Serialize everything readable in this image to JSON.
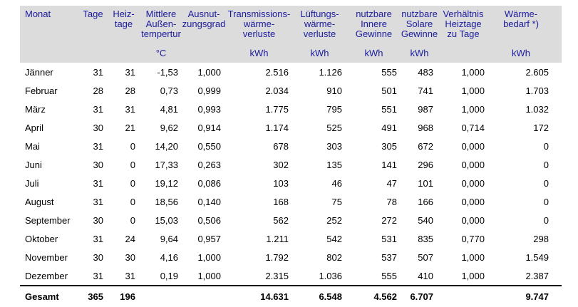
{
  "colors": {
    "header_bg": "#dcdcdc",
    "header_text": "#1c1c9e",
    "body_text": "#000000",
    "rule": "#000000"
  },
  "table": {
    "columns": [
      {
        "id": "monat",
        "title_lines": [
          "Monat"
        ],
        "unit": ""
      },
      {
        "id": "tage",
        "title_lines": [
          "Tage"
        ],
        "unit": ""
      },
      {
        "id": "heiztage",
        "title_lines": [
          "Heiz-",
          "tage"
        ],
        "unit": ""
      },
      {
        "id": "aussentemperatur",
        "title_lines": [
          "Mittlere",
          "Außen-",
          "tempertur"
        ],
        "unit": "°C"
      },
      {
        "id": "ausnutzungsgrad",
        "title_lines": [
          "Ausnut-",
          "zungsgrad"
        ],
        "unit": ""
      },
      {
        "id": "transmissionsverluste",
        "title_lines": [
          "Transmissions-",
          "wärme-",
          "verluste"
        ],
        "unit": "kWh"
      },
      {
        "id": "lueftungsverluste",
        "title_lines": [
          "Lüftungs-",
          "wärme-",
          "verluste"
        ],
        "unit": "kWh"
      },
      {
        "id": "innere-gewinne",
        "title_lines": [
          "nutzbare",
          "Innere",
          "Gewinne"
        ],
        "unit": "kWh"
      },
      {
        "id": "solare-gewinne",
        "title_lines": [
          "nutzbare",
          "Solare",
          "Gewinne"
        ],
        "unit": "kWh"
      },
      {
        "id": "verhaeltnis",
        "title_lines": [
          "Verhältnis",
          "Heiztage",
          "zu Tage"
        ],
        "unit": ""
      },
      {
        "id": "waermebedarf",
        "title_lines": [
          "Wärme-",
          "bedarf *)"
        ],
        "unit": "kWh"
      }
    ],
    "rows": [
      [
        "Jänner",
        "31",
        "31",
        "-1,53",
        "1,000",
        "2.516",
        "1.126",
        "555",
        "483",
        "1,000",
        "2.605"
      ],
      [
        "Februar",
        "28",
        "28",
        "0,73",
        "0,999",
        "2.034",
        "910",
        "501",
        "741",
        "1,000",
        "1.703"
      ],
      [
        "März",
        "31",
        "31",
        "4,81",
        "0,993",
        "1.775",
        "795",
        "551",
        "987",
        "1,000",
        "1.032"
      ],
      [
        "April",
        "30",
        "21",
        "9,62",
        "0,914",
        "1.174",
        "525",
        "491",
        "968",
        "0,714",
        "172"
      ],
      [
        "Mai",
        "31",
        "0",
        "14,20",
        "0,550",
        "678",
        "303",
        "305",
        "672",
        "0,000",
        "0"
      ],
      [
        "Juni",
        "30",
        "0",
        "17,33",
        "0,263",
        "302",
        "135",
        "141",
        "296",
        "0,000",
        "0"
      ],
      [
        "Juli",
        "31",
        "0",
        "19,12",
        "0,086",
        "103",
        "46",
        "47",
        "101",
        "0,000",
        "0"
      ],
      [
        "August",
        "31",
        "0",
        "18,56",
        "0,140",
        "168",
        "75",
        "78",
        "166",
        "0,000",
        "0"
      ],
      [
        "September",
        "30",
        "0",
        "15,03",
        "0,506",
        "562",
        "252",
        "272",
        "540",
        "0,000",
        "0"
      ],
      [
        "Oktober",
        "31",
        "24",
        "9,64",
        "0,957",
        "1.211",
        "542",
        "531",
        "835",
        "0,770",
        "298"
      ],
      [
        "November",
        "30",
        "30",
        "4,16",
        "1,000",
        "1.792",
        "802",
        "537",
        "507",
        "1,000",
        "1.549"
      ],
      [
        "Dezember",
        "31",
        "31",
        "0,19",
        "1,000",
        "2.315",
        "1.036",
        "555",
        "410",
        "1,000",
        "2.387"
      ]
    ],
    "total_row": [
      "Gesamt",
      "365",
      "196",
      "",
      "",
      "14.631",
      "6.548",
      "4.562",
      "6.707",
      "",
      "9.747"
    ]
  }
}
